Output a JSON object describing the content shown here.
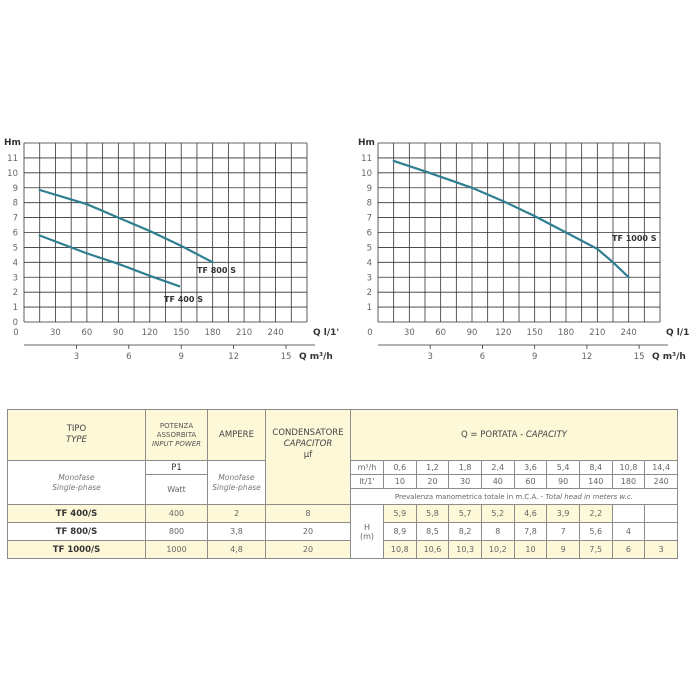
{
  "chart_data": [
    {
      "type": "line",
      "ylabel": "Hm",
      "xlabel": "Q l/1'",
      "x2label": "Q m³/h",
      "ylim": [
        0,
        12
      ],
      "xlim": [
        0,
        270
      ],
      "yticks": [
        "0",
        "1",
        "2",
        "3",
        "4",
        "5",
        "6",
        "7",
        "8",
        "9",
        "10",
        "11"
      ],
      "xticks": [
        "30",
        "60",
        "90",
        "120",
        "150",
        "180",
        "210",
        "240"
      ],
      "x2ticks": [
        "3",
        "6",
        "9",
        "12",
        "15"
      ],
      "grid": true,
      "series": [
        {
          "name": "TF 800 S",
          "points": [
            [
              15,
              8.85
            ],
            [
              60,
              7.9
            ],
            [
              90,
              7.0
            ],
            [
              120,
              6.1
            ],
            [
              150,
              5.1
            ],
            [
              180,
              4.0
            ]
          ]
        },
        {
          "name": "TF 400 S",
          "points": [
            [
              15,
              5.8
            ],
            [
              60,
              4.6
            ],
            [
              90,
              3.9
            ],
            [
              120,
              3.1
            ],
            [
              148,
              2.4
            ]
          ]
        }
      ]
    },
    {
      "type": "line",
      "ylabel": "Hm",
      "xlabel": "Q l/1'",
      "x2label": "Q m³/h",
      "ylim": [
        0,
        12
      ],
      "xlim": [
        0,
        270
      ],
      "yticks": [
        "1",
        "2",
        "3",
        "4",
        "5",
        "6",
        "7",
        "8",
        "9",
        "10",
        "11"
      ],
      "xticks": [
        "0",
        "30",
        "60",
        "90",
        "120",
        "150",
        "180",
        "210",
        "240"
      ],
      "x2ticks": [
        "3",
        "6",
        "9",
        "12",
        "15"
      ],
      "grid": true,
      "series": [
        {
          "name": "TF 1000 S",
          "points": [
            [
              15,
              10.8
            ],
            [
              45,
              10.1
            ],
            [
              90,
              9.0
            ],
            [
              120,
              8.1
            ],
            [
              150,
              7.1
            ],
            [
              180,
              6.0
            ],
            [
              210,
              4.9
            ],
            [
              225,
              4.0
            ],
            [
              240,
              3.0
            ]
          ]
        }
      ]
    }
  ],
  "colors": {
    "curve": "#2f7f92",
    "table_fill": "#fcf8d8",
    "border": "#8c8c8c"
  },
  "table": {
    "tipo": "TIPO",
    "type": "TYPE",
    "potenza": "POTENZA ASSORBITA",
    "input_power": "INPUT POWER",
    "ampere": "AMPERE",
    "condensatore": "CONDENSATORE",
    "capacitor": "CAPACITOR",
    "uf": "µf",
    "portata": "Q = PORTATA - ",
    "capacity": "CAPACITY",
    "monofase": "Monofase",
    "single_phase": "Single-phase",
    "p1": "P1",
    "watt": "Watt",
    "m3h": "m³/h",
    "lt": "lt/1'",
    "prevalenza": "Prevalenza manometrica totale in m.C.A. - ",
    "total_head": "Total head in meters w.c.",
    "h": "H",
    "hm": "(m)",
    "m3h_values": [
      "0,6",
      "1,2",
      "1,8",
      "2,4",
      "3,6",
      "5,4",
      "8,4",
      "10,8",
      "14,4"
    ],
    "lt_values": [
      "10",
      "20",
      "30",
      "40",
      "60",
      "90",
      "140",
      "180",
      "240"
    ],
    "rows": [
      {
        "model": "TF 400/S",
        "watt": "400",
        "ampere": "2",
        "uf": "8",
        "h": [
          "5,9",
          "5,8",
          "5,7",
          "5,2",
          "4,6",
          "3,9",
          "2,2",
          "",
          ""
        ]
      },
      {
        "model": "TF 800/S",
        "watt": "800",
        "ampere": "3,8",
        "uf": "20",
        "h": [
          "8,9",
          "8,5",
          "8,2",
          "8",
          "7,8",
          "7",
          "5,6",
          "4",
          ""
        ]
      },
      {
        "model": "TF 1000/S",
        "watt": "1000",
        "ampere": "4,8",
        "uf": "20",
        "h": [
          "10,8",
          "10,6",
          "10,3",
          "10,2",
          "10",
          "9",
          "7,5",
          "6",
          "3"
        ]
      }
    ]
  }
}
